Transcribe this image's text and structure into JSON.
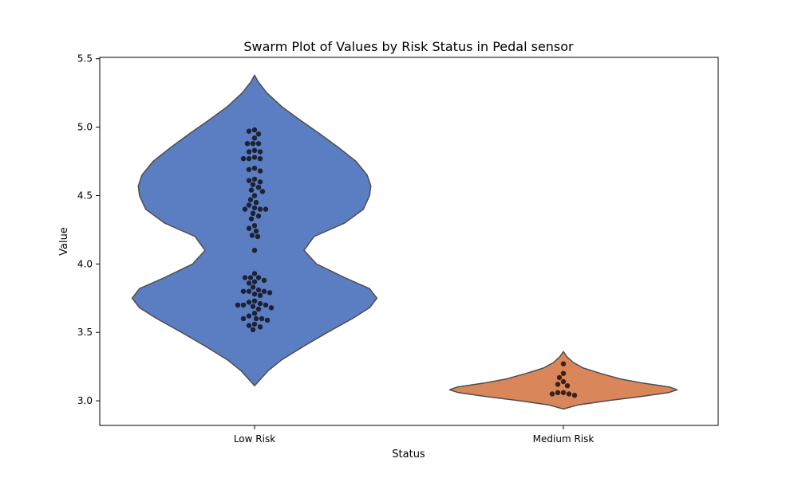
{
  "chart_data": {
    "type": "violin-swarm",
    "title": "Swarm Plot of Values by Risk Status in Pedal sensor",
    "xlabel": "Status",
    "ylabel": "Value",
    "categories": [
      "Low Risk",
      "Medium Risk"
    ],
    "ylim": [
      2.82,
      5.51
    ],
    "yticks": [
      3.0,
      3.5,
      4.0,
      4.5,
      5.0,
      5.5
    ],
    "ytick_labels": [
      "3.0",
      "3.5",
      "4.0",
      "4.5",
      "5.0",
      "5.5"
    ],
    "grid": false,
    "legend": "none",
    "colors": {
      "Low Risk": "#5b7ec2",
      "Medium Risk": "#d9875a",
      "violin_edge": "#4d4d4d",
      "Low Risk points": "#1c2133",
      "Medium Risk points": "#3a2219"
    },
    "violins": [
      {
        "category": "Low Risk",
        "range": [
          3.11,
          5.38
        ],
        "profile": [
          [
            3.11,
            0.0
          ],
          [
            3.16,
            0.05
          ],
          [
            3.22,
            0.11
          ],
          [
            3.3,
            0.22
          ],
          [
            3.4,
            0.4
          ],
          [
            3.5,
            0.59
          ],
          [
            3.6,
            0.79
          ],
          [
            3.68,
            0.93
          ],
          [
            3.75,
            0.99
          ],
          [
            3.82,
            0.93
          ],
          [
            3.9,
            0.73
          ],
          [
            4.0,
            0.5
          ],
          [
            4.1,
            0.4
          ],
          [
            4.2,
            0.48
          ],
          [
            4.3,
            0.73
          ],
          [
            4.4,
            0.88
          ],
          [
            4.5,
            0.93
          ],
          [
            4.57,
            0.94
          ],
          [
            4.65,
            0.91
          ],
          [
            4.75,
            0.82
          ],
          [
            4.85,
            0.68
          ],
          [
            4.95,
            0.53
          ],
          [
            5.05,
            0.37
          ],
          [
            5.15,
            0.22
          ],
          [
            5.25,
            0.1
          ],
          [
            5.33,
            0.03
          ],
          [
            5.38,
            0.0
          ]
        ]
      },
      {
        "category": "Medium Risk",
        "range": [
          2.94,
          3.36
        ],
        "profile": [
          [
            2.94,
            0.0
          ],
          [
            2.97,
            0.12
          ],
          [
            3.0,
            0.35
          ],
          [
            3.03,
            0.62
          ],
          [
            3.06,
            0.85
          ],
          [
            3.08,
            0.92
          ],
          [
            3.1,
            0.86
          ],
          [
            3.13,
            0.64
          ],
          [
            3.16,
            0.46
          ],
          [
            3.2,
            0.3
          ],
          [
            3.24,
            0.16
          ],
          [
            3.28,
            0.08
          ],
          [
            3.32,
            0.03
          ],
          [
            3.36,
            0.0
          ]
        ]
      }
    ],
    "points": [
      {
        "category": "Low Risk",
        "values": [
          4.98,
          4.97,
          4.95,
          4.92,
          4.88,
          4.88,
          4.88,
          4.83,
          4.82,
          4.82,
          4.78,
          4.77,
          4.77,
          4.77,
          4.7,
          4.69,
          4.68,
          4.62,
          4.61,
          4.6,
          4.58,
          4.56,
          4.54,
          4.53,
          4.5,
          4.47,
          4.45,
          4.43,
          4.41,
          4.4,
          4.4,
          4.4,
          4.37,
          4.35,
          4.33,
          4.28,
          4.26,
          4.24,
          4.21,
          4.2,
          4.1,
          3.93,
          3.9,
          3.9,
          3.9,
          3.88,
          3.87,
          3.86,
          3.83,
          3.81,
          3.8,
          3.8,
          3.8,
          3.79,
          3.78,
          3.77,
          3.73,
          3.72,
          3.71,
          3.7,
          3.7,
          3.7,
          3.69,
          3.68,
          3.67,
          3.64,
          3.62,
          3.6,
          3.6,
          3.6,
          3.59,
          3.56,
          3.55,
          3.54,
          3.52
        ]
      },
      {
        "category": "Medium Risk",
        "values": [
          3.27,
          3.2,
          3.17,
          3.14,
          3.12,
          3.11,
          3.06,
          3.06,
          3.05,
          3.05,
          3.04
        ]
      }
    ]
  }
}
